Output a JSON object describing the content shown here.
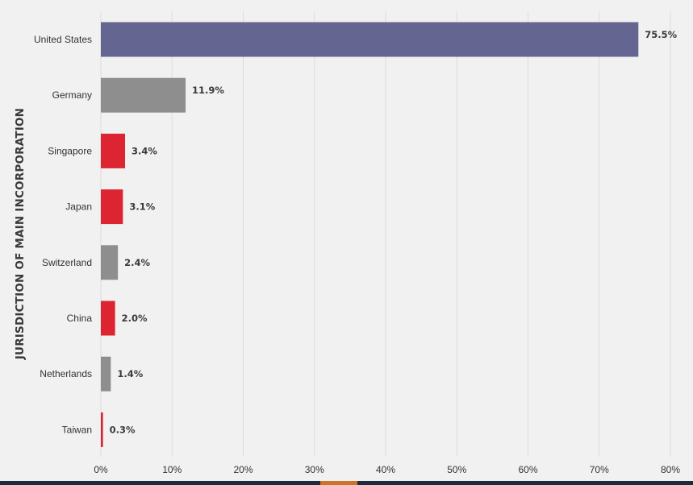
{
  "chart_data": {
    "type": "bar",
    "orientation": "horizontal",
    "ylabel": "JURISDICTION OF MAIN INCORPORATION",
    "xlabel": "",
    "xlim": [
      0,
      80
    ],
    "x_ticks": [
      "0%",
      "10%",
      "20%",
      "30%",
      "40%",
      "50%",
      "60%",
      "70%",
      "80%"
    ],
    "grid": "vertical",
    "categories": [
      "United States",
      "Germany",
      "Singapore",
      "Japan",
      "Switzerland",
      "China",
      "Netherlands",
      "Taiwan"
    ],
    "values": [
      75.5,
      11.9,
      3.4,
      3.1,
      2.4,
      2.0,
      1.4,
      0.3
    ],
    "value_labels": [
      "75.5%",
      "11.9%",
      "3.4%",
      "3.1%",
      "2.4%",
      "2.0%",
      "1.4%",
      "0.3%"
    ],
    "bar_colors": [
      "#646590",
      "#8e8e8e",
      "#dc2531",
      "#dc2531",
      "#8e8e8e",
      "#dc2531",
      "#8e8e8e",
      "#dc2531"
    ]
  },
  "colors": {
    "background": "#f1f1f1",
    "gridline": "#dcdcdc",
    "text": "#333333",
    "bottom_strip": "#1f2b3c",
    "bottom_accent": "#c9762a"
  }
}
